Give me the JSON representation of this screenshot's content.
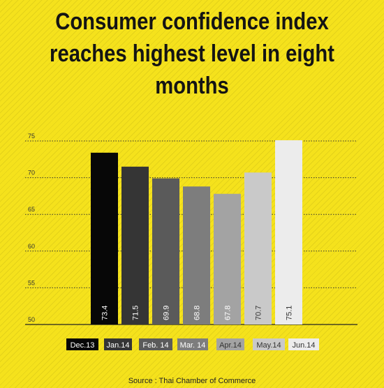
{
  "title": "Consumer confidence index reaches highest level in eight months",
  "source": "Source :  Thai Chamber of Commerce",
  "colors": {
    "background": "#f5e21c",
    "bars": [
      "#070707",
      "#353535",
      "#5a5a5a",
      "#7d7d7d",
      "#a3a3a3",
      "#c9c9c9",
      "#ececec"
    ],
    "gridline": "#333333"
  },
  "chart_data": {
    "type": "bar",
    "title": "Consumer confidence index reaches highest level in eight months",
    "categories": [
      "Dec.13",
      "Jan.14",
      "Feb. 14",
      "Mar. 14",
      "Apr.14",
      "May.14",
      "Jun.14"
    ],
    "values": [
      73.4,
      71.5,
      69.9,
      68.8,
      67.8,
      70.7,
      75.1
    ],
    "data_labels": [
      "73.4",
      "71.5",
      "69.9",
      "68.8",
      "67.8",
      "70.7",
      "75.1"
    ],
    "y_ticks": [
      50,
      55,
      60,
      65,
      70,
      75
    ],
    "ylim": [
      50,
      75
    ],
    "xlabel": "",
    "ylabel": "",
    "grid": true,
    "legend": "bottom"
  }
}
